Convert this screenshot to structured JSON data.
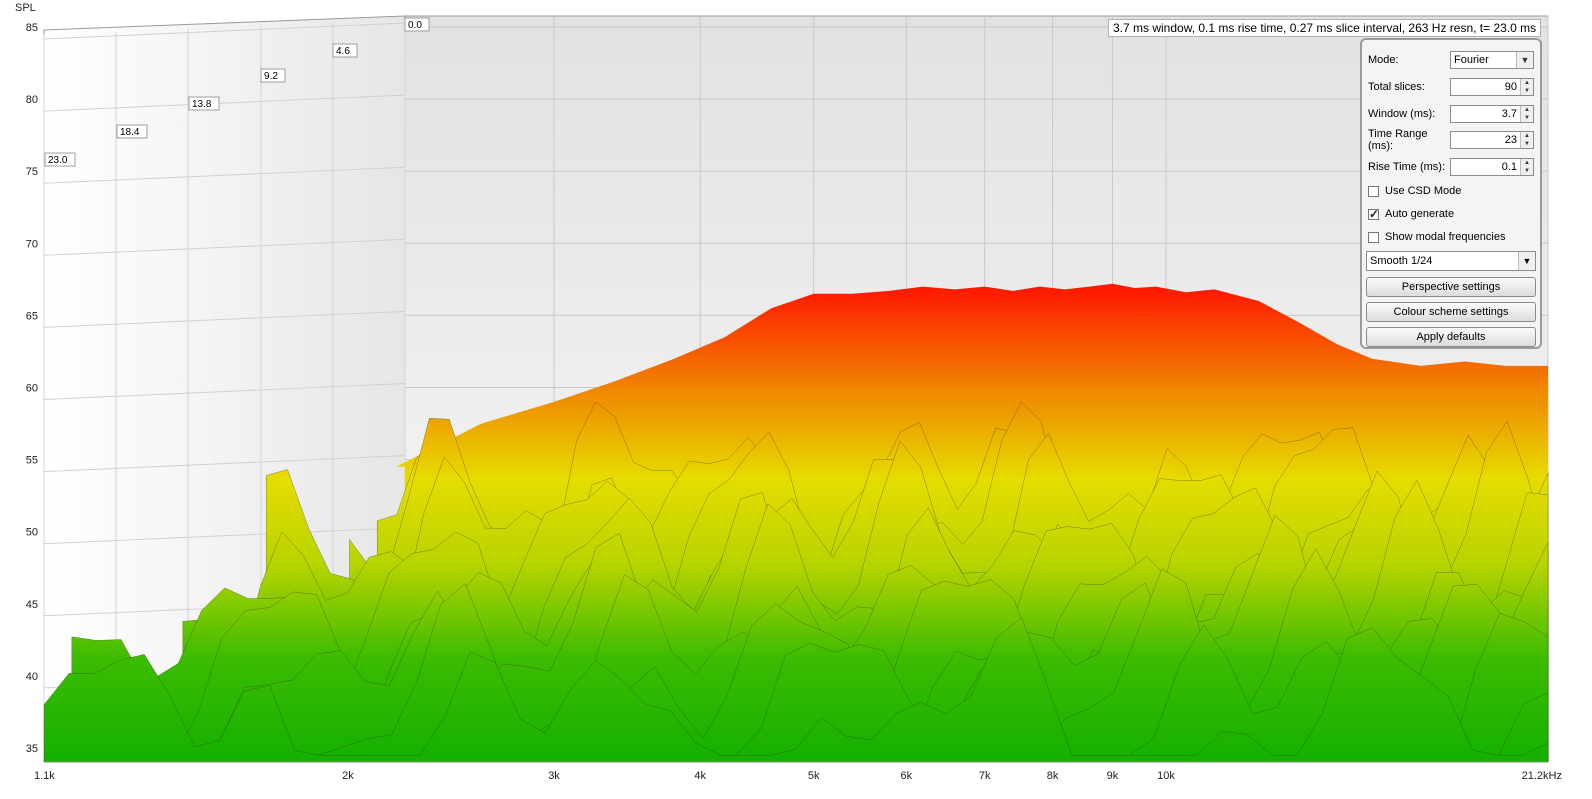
{
  "chart_data": {
    "type": "area",
    "title": "",
    "ylabel": "SPL",
    "xlabel": "",
    "y_ticks": [
      "85",
      "80",
      "75",
      "70",
      "65",
      "60",
      "55",
      "50",
      "45",
      "40",
      "35"
    ],
    "ylim": [
      34,
      86
    ],
    "x_ticks": [
      "1.1k",
      "2k",
      "3k",
      "4k",
      "5k",
      "6k",
      "7k",
      "8k",
      "9k",
      "10k",
      "21.2kHz"
    ],
    "x_tick_values": [
      1100,
      2000,
      3000,
      4000,
      5000,
      6000,
      7000,
      8000,
      9000,
      10000,
      21200
    ],
    "xlim_hz": [
      1100,
      21200
    ],
    "x_scale": "log",
    "time_labels": [
      "23.0",
      "18.4",
      "13.8",
      "9.2",
      "4.6",
      "0.0"
    ],
    "time_unit": "ms",
    "grid": true,
    "front_slice": {
      "name": "t=0.0 ms",
      "x_hz": [
        2200,
        2600,
        3000,
        3400,
        3800,
        4200,
        4600,
        5000,
        5400,
        5800,
        6200,
        6600,
        7000,
        7400,
        7800,
        8200,
        8600,
        9000,
        9400,
        9800,
        10400,
        11000,
        12000,
        13000,
        14000,
        15000,
        16500,
        18000,
        19500,
        21200
      ],
      "spl": [
        54.5,
        57.5,
        59.0,
        60.5,
        62.0,
        63.5,
        65.5,
        66.5,
        66.5,
        66.7,
        67.0,
        66.8,
        67.0,
        66.7,
        67.0,
        66.8,
        67.0,
        67.2,
        66.9,
        67.0,
        66.6,
        66.8,
        66.0,
        64.5,
        63.0,
        62.0,
        61.5,
        61.8,
        61.5,
        61.5
      ]
    }
  },
  "info_bar": {
    "text": "3.7 ms window, 0.1 ms rise time, 0.27 ms slice interval, 263 Hz resn, t= 23.0 ms"
  },
  "panel": {
    "mode_label": "Mode:",
    "mode_value": "Fourier",
    "total_slices_label": "Total slices:",
    "total_slices_value": "90",
    "window_label": "Window (ms):",
    "window_value": "3.7",
    "time_range_label": "Time Range (ms):",
    "time_range_value": "23",
    "rise_time_label": "Rise Time (ms):",
    "rise_time_value": "0.1",
    "use_csd_label": "Use CSD Mode",
    "use_csd_checked": false,
    "auto_generate_label": "Auto generate",
    "auto_generate_checked": true,
    "show_modal_label": "Show modal frequencies",
    "show_modal_checked": false,
    "smoothing_value": "Smooth 1/24",
    "perspective_button": "Perspective settings",
    "colour_scheme_button": "Colour scheme settings",
    "apply_defaults_button": "Apply defaults"
  },
  "colors": {
    "hot": "#ff1a00",
    "mid": "#e6e000",
    "cool": "#18b400",
    "wall": "#ebebeb",
    "grid": "#bdbdbd"
  }
}
